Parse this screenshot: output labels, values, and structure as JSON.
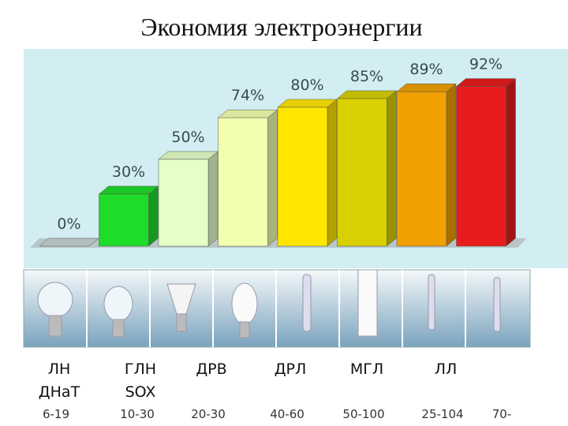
{
  "chart_data": {
    "type": "bar",
    "title": "Экономия электроэнергии",
    "categories": [
      null,
      null,
      null,
      null,
      null,
      null,
      null,
      null
    ],
    "values": [
      0,
      30,
      50,
      74,
      80,
      85,
      89,
      92
    ],
    "value_labels": [
      "0%",
      "30%",
      "50%",
      "74%",
      "80%",
      "85%",
      "89%",
      "92%"
    ],
    "colors": [
      "#c9d3d3",
      "#1fdc2a",
      "#e4ffc8",
      "#f2ffae",
      "#ffe600",
      "#d8d000",
      "#f0a000",
      "#e81c1c"
    ]
  },
  "lamps": {
    "names": [
      "ЛН",
      "ГЛН",
      "ДРВ",
      "ДРЛ",
      "МГЛ",
      "ЛЛ"
    ],
    "alt_names": [
      "ДНаТ",
      "SOX"
    ],
    "ranges": [
      "6-19",
      "10-30",
      "20-30",
      "40-60",
      "50-100",
      "25-104",
      "70-"
    ]
  }
}
